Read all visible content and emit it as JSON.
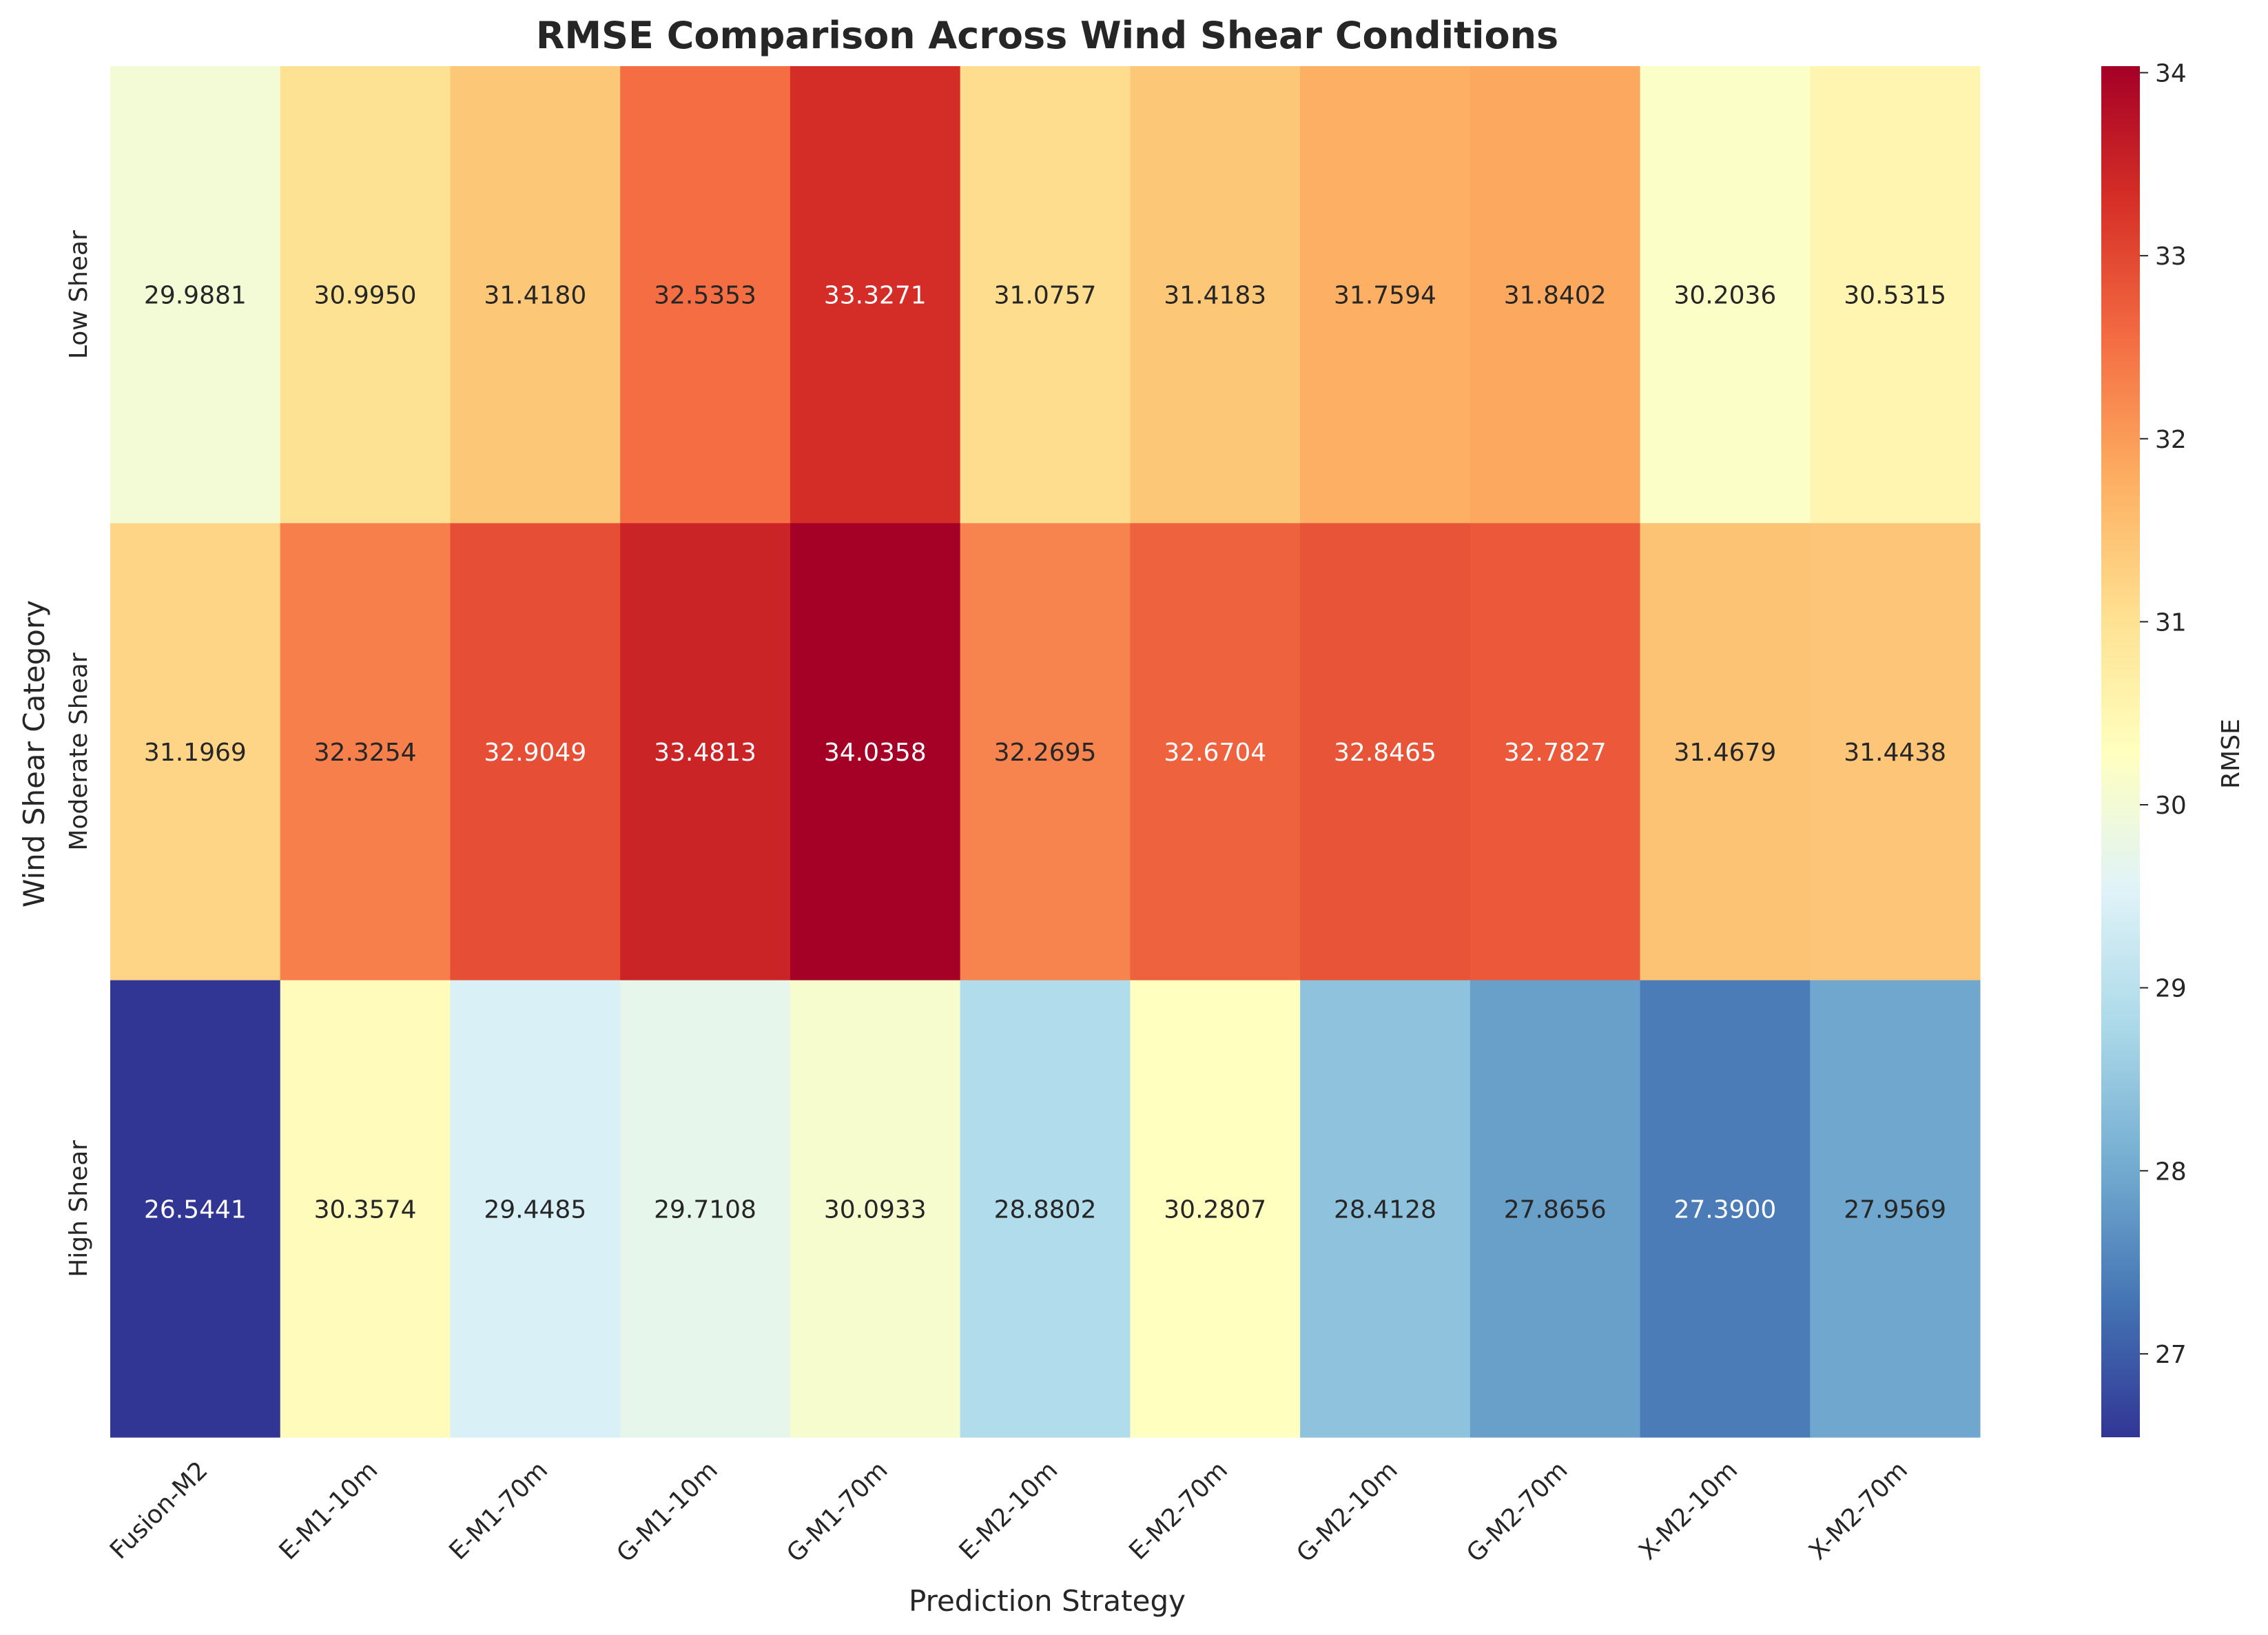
{
  "chart_data": {
    "type": "heatmap",
    "title": "RMSE Comparison Across Wind Shear Conditions",
    "xlabel": "Prediction Strategy",
    "ylabel": "Wind Shear Category",
    "colorbar_label": "RMSE",
    "x_categories": [
      "Fusion-M2",
      "E-M1-10m",
      "E-M1-70m",
      "G-M1-10m",
      "G-M1-70m",
      "E-M2-10m",
      "E-M2-70m",
      "G-M2-10m",
      "G-M2-70m",
      "X-M2-10m",
      "X-M2-70m"
    ],
    "y_categories": [
      "Low Shear",
      "Moderate Shear",
      "High Shear"
    ],
    "values": [
      [
        29.9881,
        30.995,
        31.418,
        32.5353,
        33.3271,
        31.0757,
        31.4183,
        31.7594,
        31.8402,
        30.2036,
        30.5315
      ],
      [
        31.1969,
        32.3254,
        32.9049,
        33.4813,
        34.0358,
        32.2695,
        32.6704,
        32.8465,
        32.7827,
        31.4679,
        31.4438
      ],
      [
        26.5441,
        30.3574,
        29.4485,
        29.7108,
        30.0933,
        28.8802,
        30.2807,
        28.4128,
        27.8656,
        27.39,
        27.9569
      ]
    ],
    "cell_labels": [
      [
        "29.9881",
        "30.9950",
        "31.4180",
        "32.5353",
        "33.3271",
        "31.0757",
        "31.4183",
        "31.7594",
        "31.8402",
        "30.2036",
        "30.5315"
      ],
      [
        "31.1969",
        "32.3254",
        "32.9049",
        "33.4813",
        "34.0358",
        "32.2695",
        "32.6704",
        "32.8465",
        "32.7827",
        "31.4679",
        "31.4438"
      ],
      [
        "26.5441",
        "30.3574",
        "29.4485",
        "29.7108",
        "30.0933",
        "28.8802",
        "30.2807",
        "28.4128",
        "27.8656",
        "27.3900",
        "27.9569"
      ]
    ],
    "color_range": [
      26.5441,
      34.0358
    ],
    "colorbar_ticks": [
      "27",
      "28",
      "29",
      "30",
      "31",
      "32",
      "33",
      "34"
    ],
    "colormap": "RdYlBu_r",
    "colormap_stops": [
      "#313695",
      "#4575b4",
      "#74add1",
      "#abd9e9",
      "#e0f3f8",
      "#ffffbf",
      "#fee090",
      "#fdae61",
      "#f46d43",
      "#d73027",
      "#a50026"
    ],
    "grid": false
  }
}
